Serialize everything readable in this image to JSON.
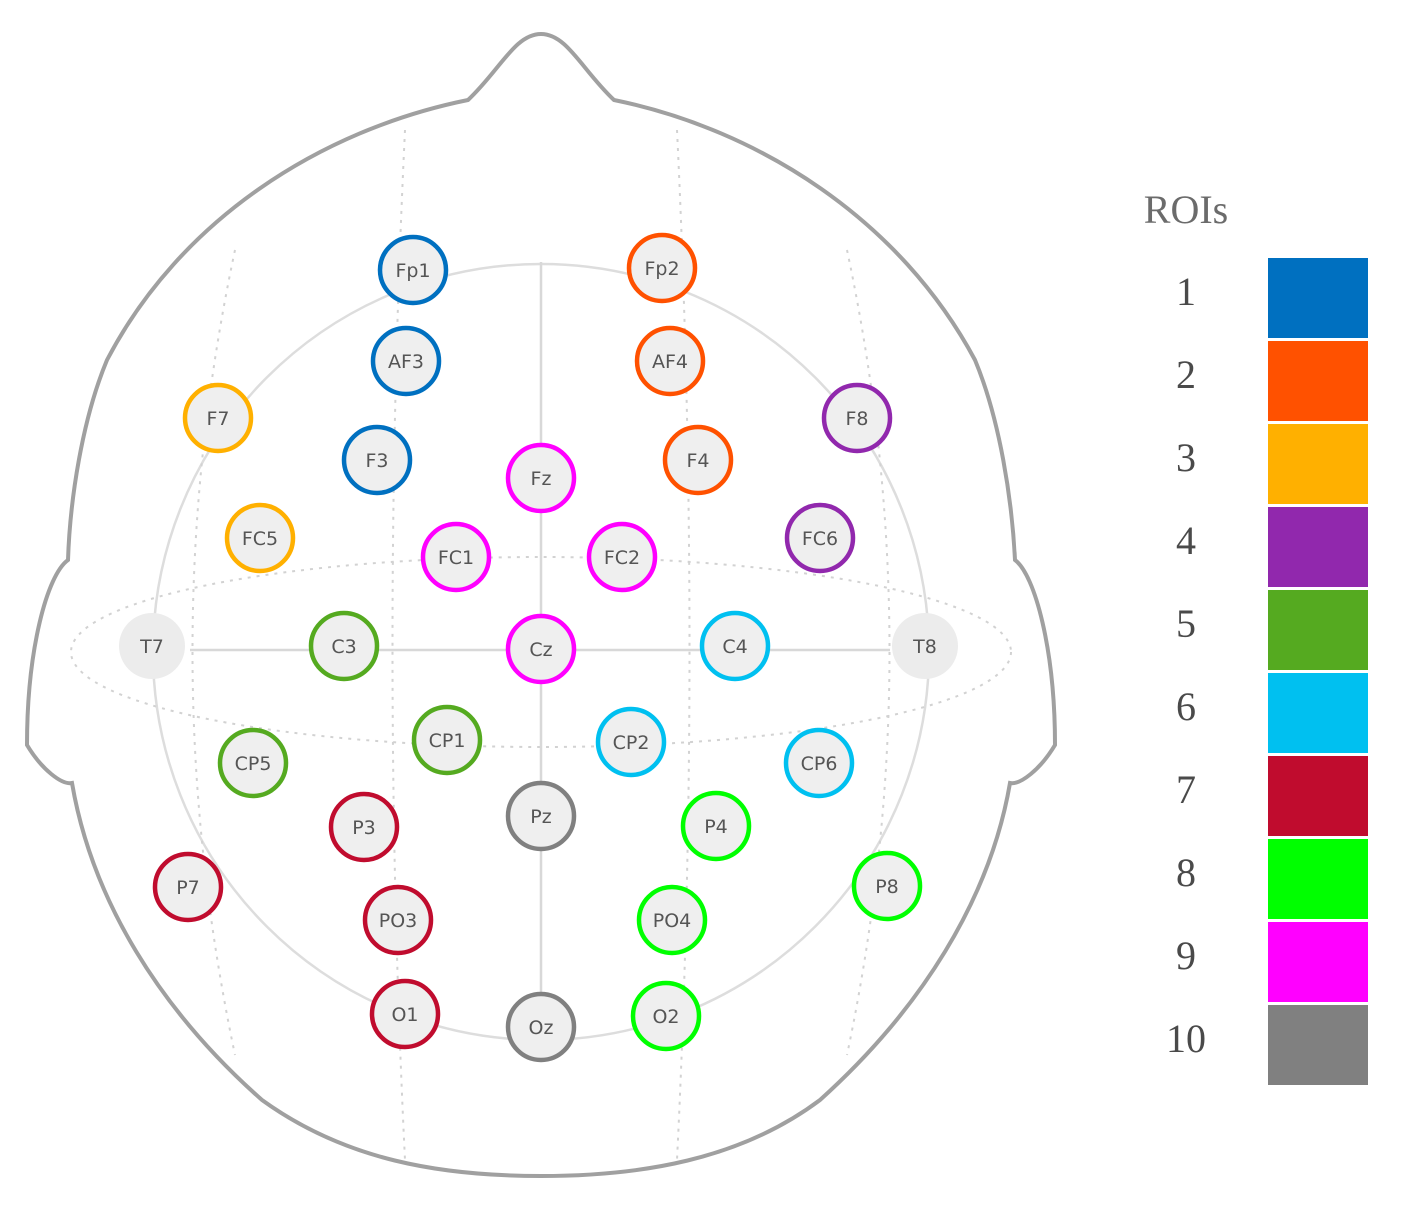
{
  "legend": {
    "title": "ROIs",
    "items": [
      {
        "label": "1",
        "color": "#0070C0"
      },
      {
        "label": "2",
        "color": "#FF5100"
      },
      {
        "label": "3",
        "color": "#FFB000"
      },
      {
        "label": "4",
        "color": "#9128AD"
      },
      {
        "label": "5",
        "color": "#55AA20"
      },
      {
        "label": "6",
        "color": "#00C0F0"
      },
      {
        "label": "7",
        "color": "#C00C2E"
      },
      {
        "label": "8",
        "color": "#00FF00"
      },
      {
        "label": "9",
        "color": "#FF00FF"
      },
      {
        "label": "10",
        "color": "#808080"
      }
    ]
  },
  "electrodes": [
    {
      "label": "Fp1",
      "roi": 1
    },
    {
      "label": "Fp2",
      "roi": 2
    },
    {
      "label": "AF3",
      "roi": 1
    },
    {
      "label": "AF4",
      "roi": 2
    },
    {
      "label": "F7",
      "roi": 3
    },
    {
      "label": "F8",
      "roi": 4
    },
    {
      "label": "F3",
      "roi": 1
    },
    {
      "label": "F4",
      "roi": 2
    },
    {
      "label": "Fz",
      "roi": 9
    },
    {
      "label": "FC5",
      "roi": 3
    },
    {
      "label": "FC6",
      "roi": 4
    },
    {
      "label": "FC1",
      "roi": 9
    },
    {
      "label": "FC2",
      "roi": 9
    },
    {
      "label": "T7",
      "roi": null
    },
    {
      "label": "C3",
      "roi": 5
    },
    {
      "label": "Cz",
      "roi": 9
    },
    {
      "label": "C4",
      "roi": 6
    },
    {
      "label": "T8",
      "roi": null
    },
    {
      "label": "CP1",
      "roi": 5
    },
    {
      "label": "CP2",
      "roi": 6
    },
    {
      "label": "CP5",
      "roi": 5
    },
    {
      "label": "CP6",
      "roi": 6
    },
    {
      "label": "Pz",
      "roi": 10
    },
    {
      "label": "P3",
      "roi": 7
    },
    {
      "label": "P4",
      "roi": 8
    },
    {
      "label": "P7",
      "roi": 7
    },
    {
      "label": "P8",
      "roi": 8
    },
    {
      "label": "PO3",
      "roi": 7
    },
    {
      "label": "PO4",
      "roi": 8
    },
    {
      "label": "O1",
      "roi": 7
    },
    {
      "label": "Oz",
      "roi": 10
    },
    {
      "label": "O2",
      "roi": 8
    }
  ]
}
